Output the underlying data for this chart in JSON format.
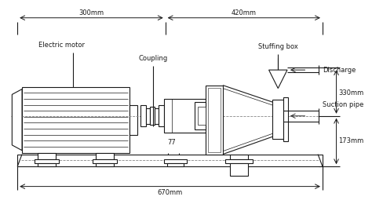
{
  "bg_color": "#ffffff",
  "line_color": "#1a1a1a",
  "fig_width": 4.74,
  "fig_height": 2.74,
  "dpi": 100,
  "labels": {
    "electric_motor": "Electric motor",
    "coupling": "Coupling",
    "stuffing_box": "Stuffing box",
    "discharge": "Discharge",
    "suction_pipe": "Suction pipe",
    "dim_300": "300mm",
    "dim_420": "420mm",
    "dim_670": "670mm",
    "dim_330": "330mm",
    "dim_173": "173mm",
    "dim_77": "77"
  },
  "fontsize": 6.0
}
